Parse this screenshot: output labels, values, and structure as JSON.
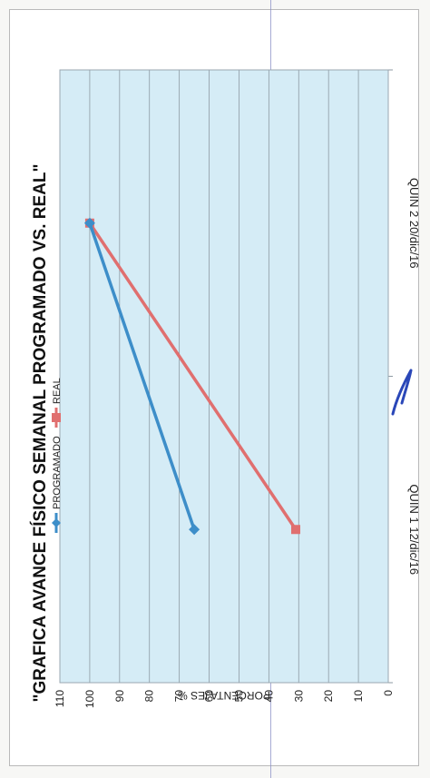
{
  "chart_data": {
    "type": "line",
    "title": "\"GRAFICA AVANCE FÍSICO SEMANAL PROGRAMADO VS. REAL\"",
    "xlabel": "",
    "ylabel": "PORCENTAJES %",
    "categories": [
      "QUIN 1 12/dic/16",
      "QUIN 2 20/dic/16"
    ],
    "ylim": [
      0,
      110
    ],
    "yticks": [
      "0",
      "10",
      "20",
      "30",
      "40",
      "50",
      "60",
      "70",
      "80",
      "90",
      "100",
      "110"
    ],
    "grid": true,
    "legend": "top",
    "series": [
      {
        "name": "PROGRAMADO",
        "values": [
          65,
          100
        ],
        "color": "#3d8ec9",
        "marker": "diamond"
      },
      {
        "name": "REAL",
        "values": [
          31,
          100
        ],
        "color": "#e06f6f",
        "marker": "square"
      }
    ],
    "plot_background": "#d5ecf6"
  }
}
